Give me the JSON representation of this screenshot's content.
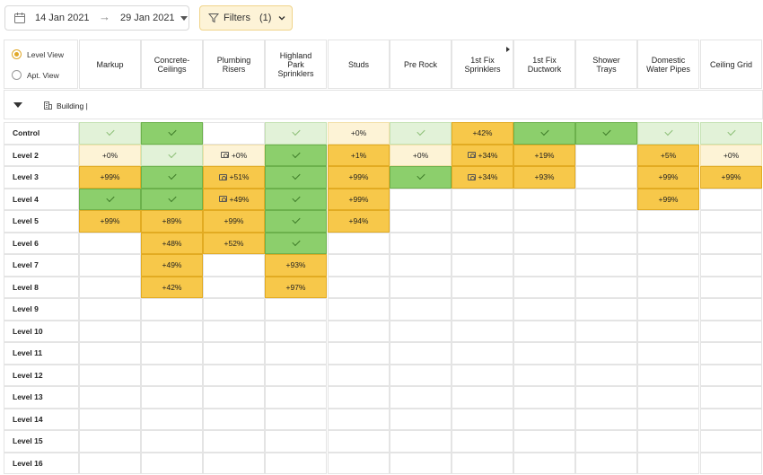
{
  "toolbar": {
    "date_from": "14 Jan 2021",
    "date_arrow": "→",
    "date_to": "29 Jan 2021",
    "filters_label": "Filters",
    "filters_count": "(1)"
  },
  "view_selector": {
    "options": [
      {
        "label": "Level View",
        "selected": true
      },
      {
        "label": "Apt. View",
        "selected": false
      }
    ]
  },
  "building": {
    "label": "Building |"
  },
  "columns": [
    "Markup",
    "Concrete-\nCeilings",
    "Plumbing\nRisers",
    "Highland\nPark\nSprinklers",
    "Studs",
    "Pre Rock",
    "1st Fix\nSprinklers",
    "1st Fix\nDuctwork",
    "Shower\nTrays",
    "Domestic\nWater Pipes",
    "Ceiling Grid"
  ],
  "colors": {
    "light_yellow": "#fdf3d6",
    "yellow": "#f7c84a",
    "light_green": "#e2f2d8",
    "green": "#8ccf6c",
    "filter_bg": "#fdf3d7",
    "radio_accent": "#e0a82a"
  },
  "rows": [
    {
      "label": "Control",
      "cells": [
        [
          "lg",
          "✓",
          false
        ],
        [
          "g",
          "✓",
          false
        ],
        [
          "",
          null,
          false
        ],
        [
          "lg",
          "✓",
          false
        ],
        [
          "ly",
          "+0%",
          false
        ],
        [
          "lg",
          "✓",
          false
        ],
        [
          "y",
          "+42%",
          false
        ],
        [
          "g",
          "✓",
          false
        ],
        [
          "g",
          "✓",
          false
        ],
        [
          "lg",
          "✓",
          false
        ],
        [
          "lg",
          "✓",
          false
        ]
      ]
    },
    {
      "label": "Level 2",
      "cells": [
        [
          "ly",
          "+0%",
          false
        ],
        [
          "lg",
          "✓",
          false
        ],
        [
          "ly",
          "+0%",
          true
        ],
        [
          "g",
          "✓",
          false
        ],
        [
          "y",
          "+1%",
          false
        ],
        [
          "ly",
          "+0%",
          false
        ],
        [
          "y",
          "+34%",
          true
        ],
        [
          "y",
          "+19%",
          false
        ],
        [
          "",
          null,
          false
        ],
        [
          "y",
          "+5%",
          false
        ],
        [
          "ly",
          "+0%",
          false
        ]
      ]
    },
    {
      "label": "Level 3",
      "cells": [
        [
          "y",
          "+99%",
          false
        ],
        [
          "g",
          "✓",
          false
        ],
        [
          "y",
          "+51%",
          true
        ],
        [
          "g",
          "✓",
          false
        ],
        [
          "y",
          "+99%",
          false
        ],
        [
          "g",
          "✓",
          false
        ],
        [
          "y",
          "+34%",
          true
        ],
        [
          "y",
          "+93%",
          false
        ],
        [
          "",
          null,
          false
        ],
        [
          "y",
          "+99%",
          false
        ],
        [
          "y",
          "+99%",
          false
        ]
      ]
    },
    {
      "label": "Level 4",
      "cells": [
        [
          "g",
          "✓",
          false
        ],
        [
          "g",
          "✓",
          false
        ],
        [
          "y",
          "+49%",
          true
        ],
        [
          "g",
          "✓",
          false
        ],
        [
          "y",
          "+99%",
          false
        ],
        [
          "",
          null,
          false
        ],
        [
          "",
          null,
          false
        ],
        [
          "",
          null,
          false
        ],
        [
          "",
          null,
          false
        ],
        [
          "y",
          "+99%",
          false
        ],
        [
          "",
          null,
          false
        ]
      ]
    },
    {
      "label": "Level 5",
      "cells": [
        [
          "y",
          "+99%",
          false
        ],
        [
          "y",
          "+89%",
          false
        ],
        [
          "y",
          "+99%",
          false
        ],
        [
          "g",
          "✓",
          false
        ],
        [
          "y",
          "+94%",
          false
        ],
        [
          "",
          null,
          false
        ],
        [
          "",
          null,
          false
        ],
        [
          "",
          null,
          false
        ],
        [
          "",
          null,
          false
        ],
        [
          "",
          null,
          false
        ],
        [
          "",
          null,
          false
        ]
      ]
    },
    {
      "label": "Level 6",
      "cells": [
        [
          "",
          null,
          false
        ],
        [
          "y",
          "+48%",
          false
        ],
        [
          "y",
          "+52%",
          false
        ],
        [
          "g",
          "✓",
          false
        ],
        [
          "",
          null,
          false
        ],
        [
          "",
          null,
          false
        ],
        [
          "",
          null,
          false
        ],
        [
          "",
          null,
          false
        ],
        [
          "",
          null,
          false
        ],
        [
          "",
          null,
          false
        ],
        [
          "",
          null,
          false
        ]
      ]
    },
    {
      "label": "Level 7",
      "cells": [
        [
          "",
          null,
          false
        ],
        [
          "y",
          "+49%",
          false
        ],
        [
          "",
          null,
          false
        ],
        [
          "y",
          "+93%",
          false
        ],
        [
          "",
          null,
          false
        ],
        [
          "",
          null,
          false
        ],
        [
          "",
          null,
          false
        ],
        [
          "",
          null,
          false
        ],
        [
          "",
          null,
          false
        ],
        [
          "",
          null,
          false
        ],
        [
          "",
          null,
          false
        ]
      ]
    },
    {
      "label": "Level 8",
      "cells": [
        [
          "",
          null,
          false
        ],
        [
          "y",
          "+42%",
          false
        ],
        [
          "",
          null,
          false
        ],
        [
          "y",
          "+97%",
          false
        ],
        [
          "",
          null,
          false
        ],
        [
          "",
          null,
          false
        ],
        [
          "",
          null,
          false
        ],
        [
          "",
          null,
          false
        ],
        [
          "",
          null,
          false
        ],
        [
          "",
          null,
          false
        ],
        [
          "",
          null,
          false
        ]
      ]
    },
    {
      "label": "Level 9",
      "cells": []
    },
    {
      "label": "Level 10",
      "cells": []
    },
    {
      "label": "Level 11",
      "cells": []
    },
    {
      "label": "Level 12",
      "cells": []
    },
    {
      "label": "Level 13",
      "cells": []
    },
    {
      "label": "Level 14",
      "cells": []
    },
    {
      "label": "Level 15",
      "cells": []
    },
    {
      "label": "Level 16",
      "cells": []
    }
  ]
}
